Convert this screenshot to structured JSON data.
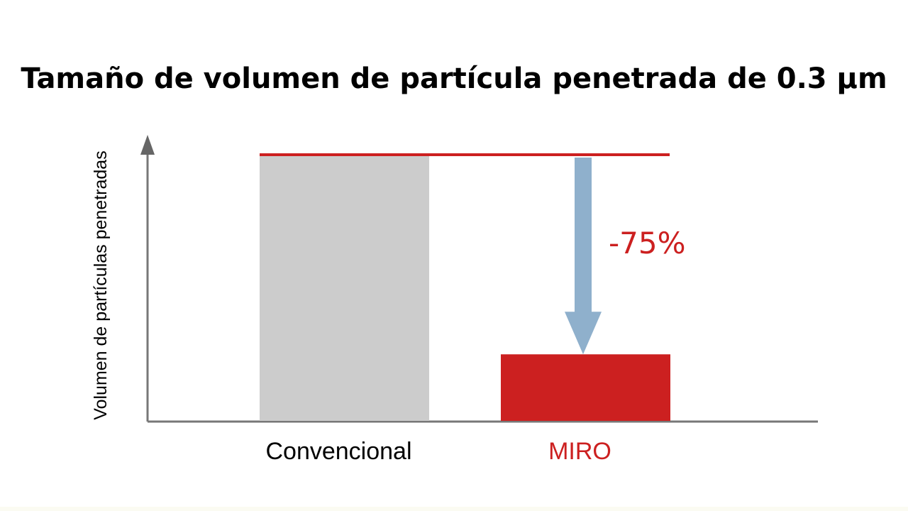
{
  "chart_data": {
    "type": "bar",
    "title": "Tamaño de volumen de partícula penetrada de 0.3 µm",
    "ylabel": "Volumen de partículas penetradas",
    "categories": [
      "Convencional",
      "MIRO"
    ],
    "values": [
      100,
      25
    ],
    "ylim": [
      0,
      100
    ],
    "bar_colors": [
      "#cccccc",
      "#cc2020"
    ],
    "category_label_colors": [
      "#000000",
      "#cc2020"
    ],
    "reference_line_color": "#cc2020",
    "arrow_color": "#8fb0cc",
    "annotation": {
      "text": "-75%",
      "color": "#cc2020"
    },
    "grid": false,
    "legend": "none"
  }
}
